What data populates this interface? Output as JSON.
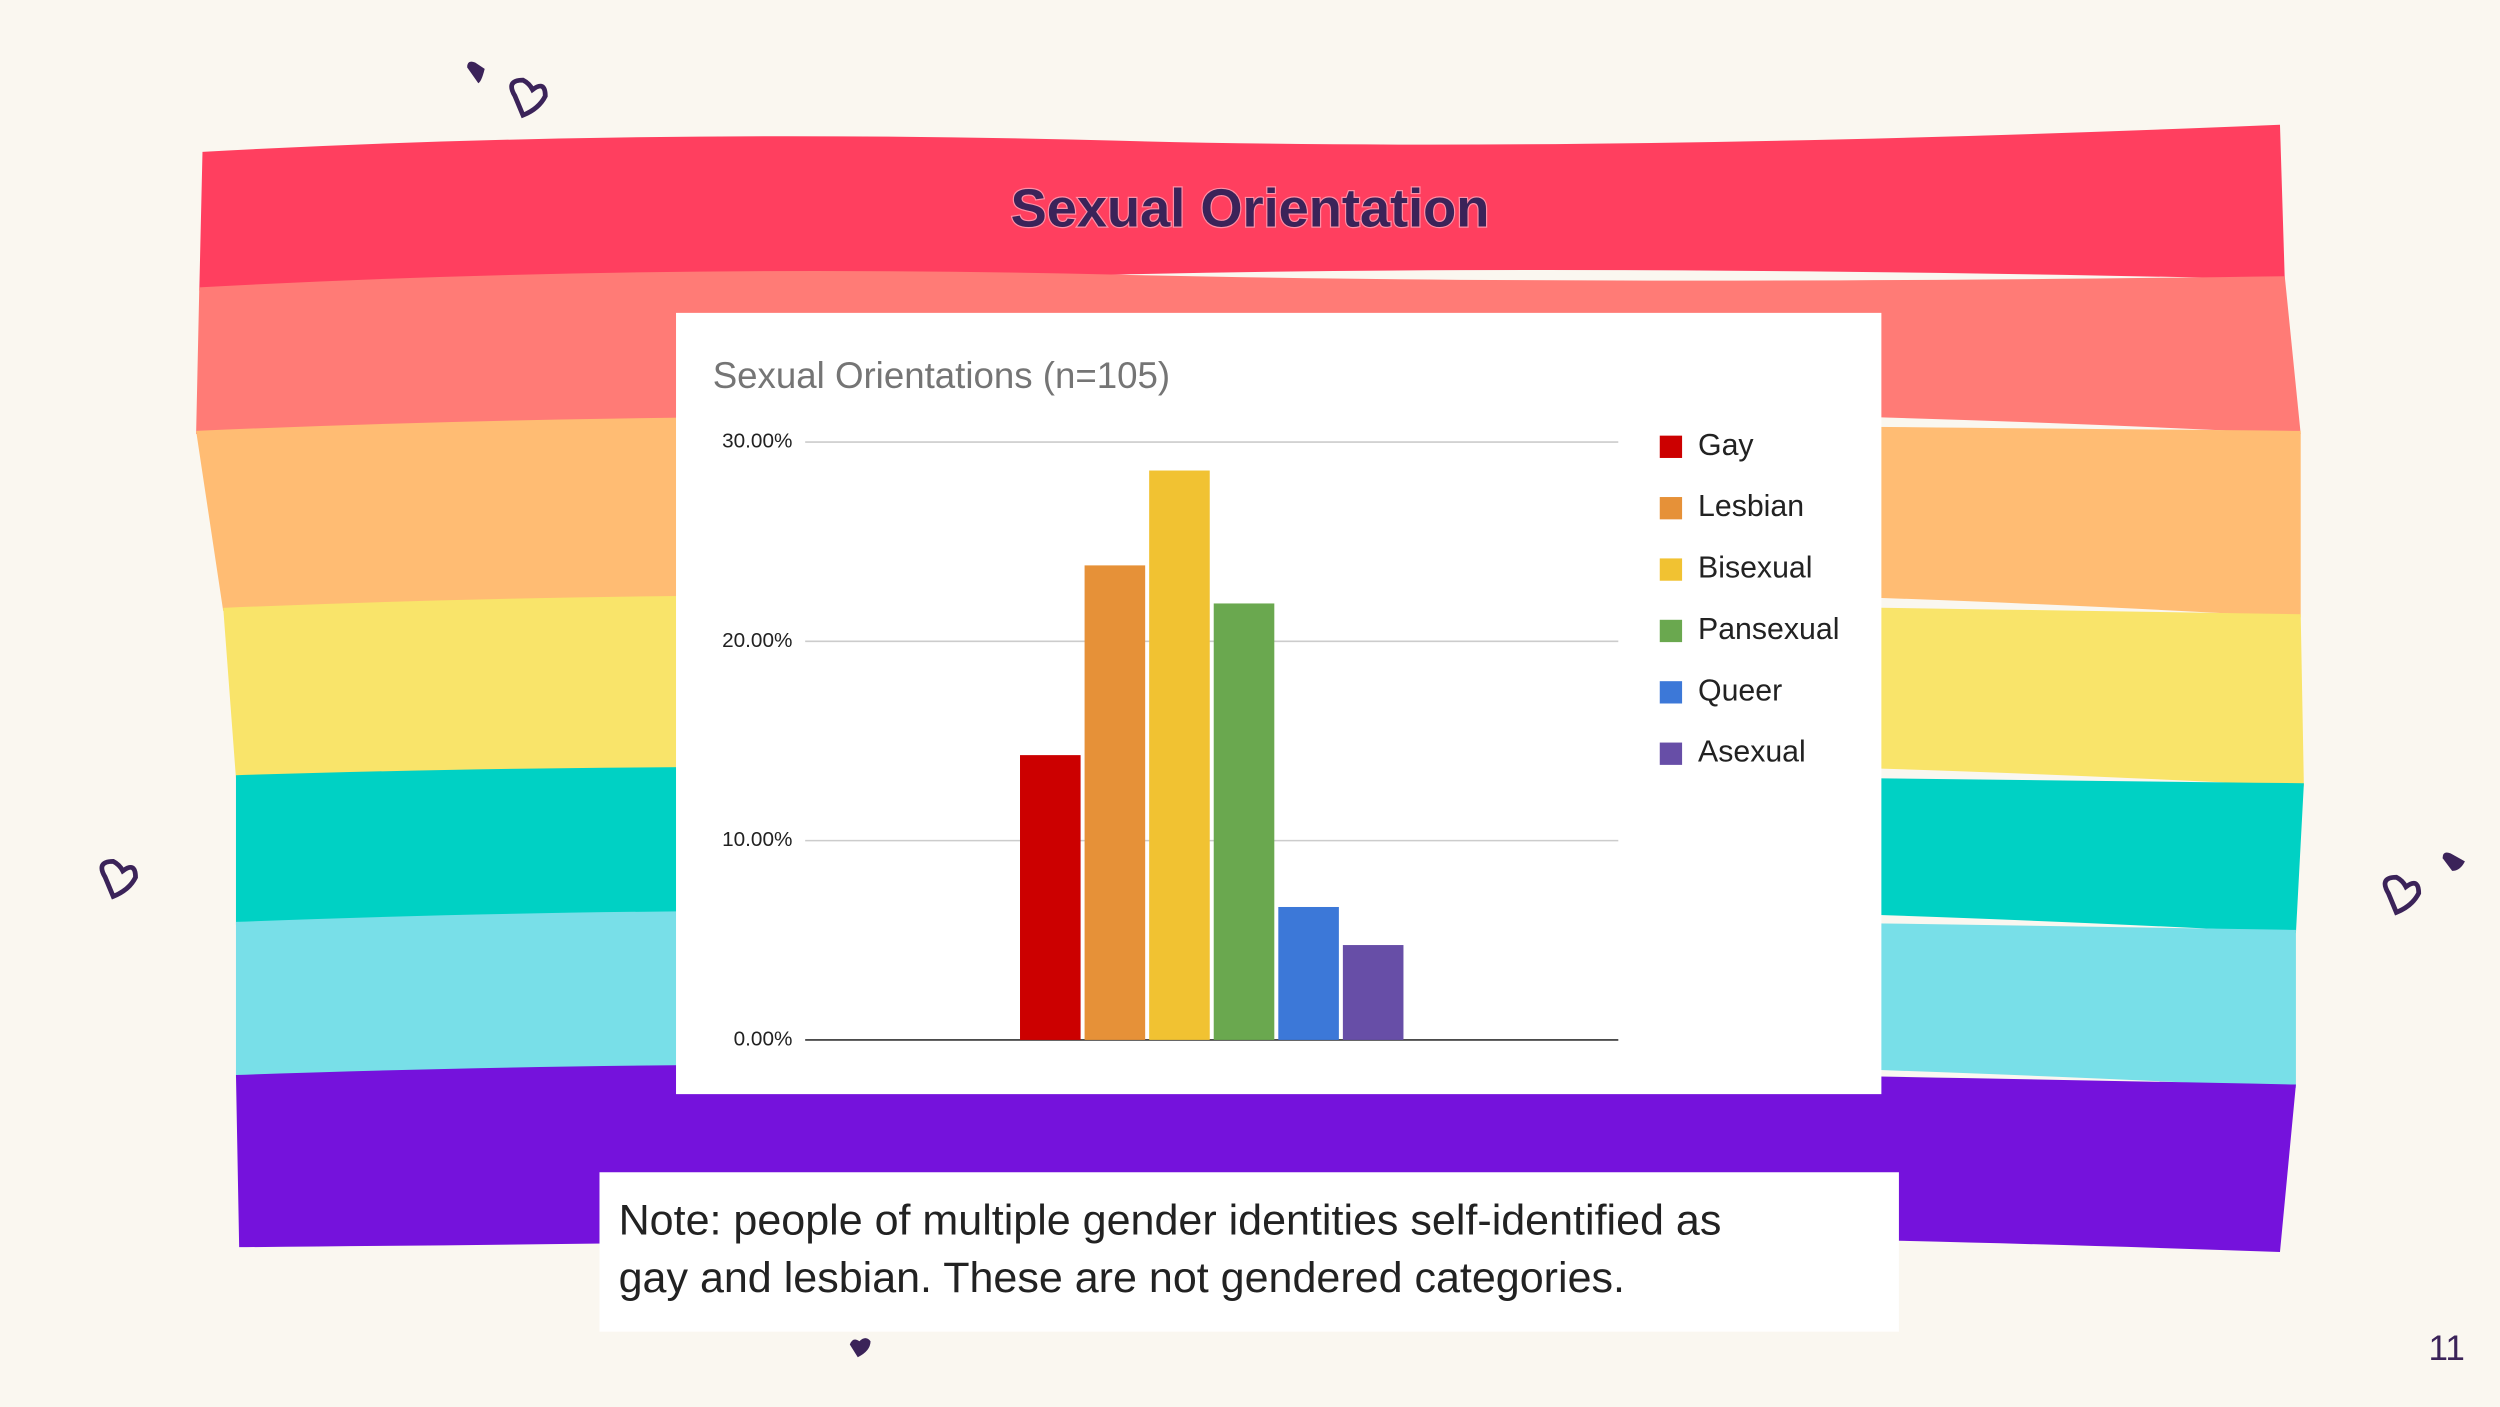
{
  "slide_title": "Sexual Orientation",
  "chart_data": {
    "type": "bar",
    "title": "Sexual Orientations (n=105)",
    "categories": [
      "Gay",
      "Lesbian",
      "Bisexual",
      "Pansexual",
      "Queer",
      "Asexual"
    ],
    "values": [
      14.29,
      23.81,
      28.57,
      21.9,
      6.67,
      4.76
    ],
    "colors": [
      "#cc0000",
      "#e69138",
      "#f1c232",
      "#6aa84f",
      "#3c78d8",
      "#674ea7"
    ],
    "ylim": [
      0,
      30
    ],
    "yticks": [
      {
        "value": 0,
        "label": "0.00%"
      },
      {
        "value": 10,
        "label": "10.00%"
      },
      {
        "value": 20,
        "label": "20.00%"
      },
      {
        "value": 30,
        "label": "30.00%"
      }
    ],
    "grid": true,
    "legend": "right"
  },
  "note": [
    "Note: people of multiple gender identities self-identified as",
    "gay and lesbian. These are not gendered categories."
  ],
  "page_number": "11"
}
